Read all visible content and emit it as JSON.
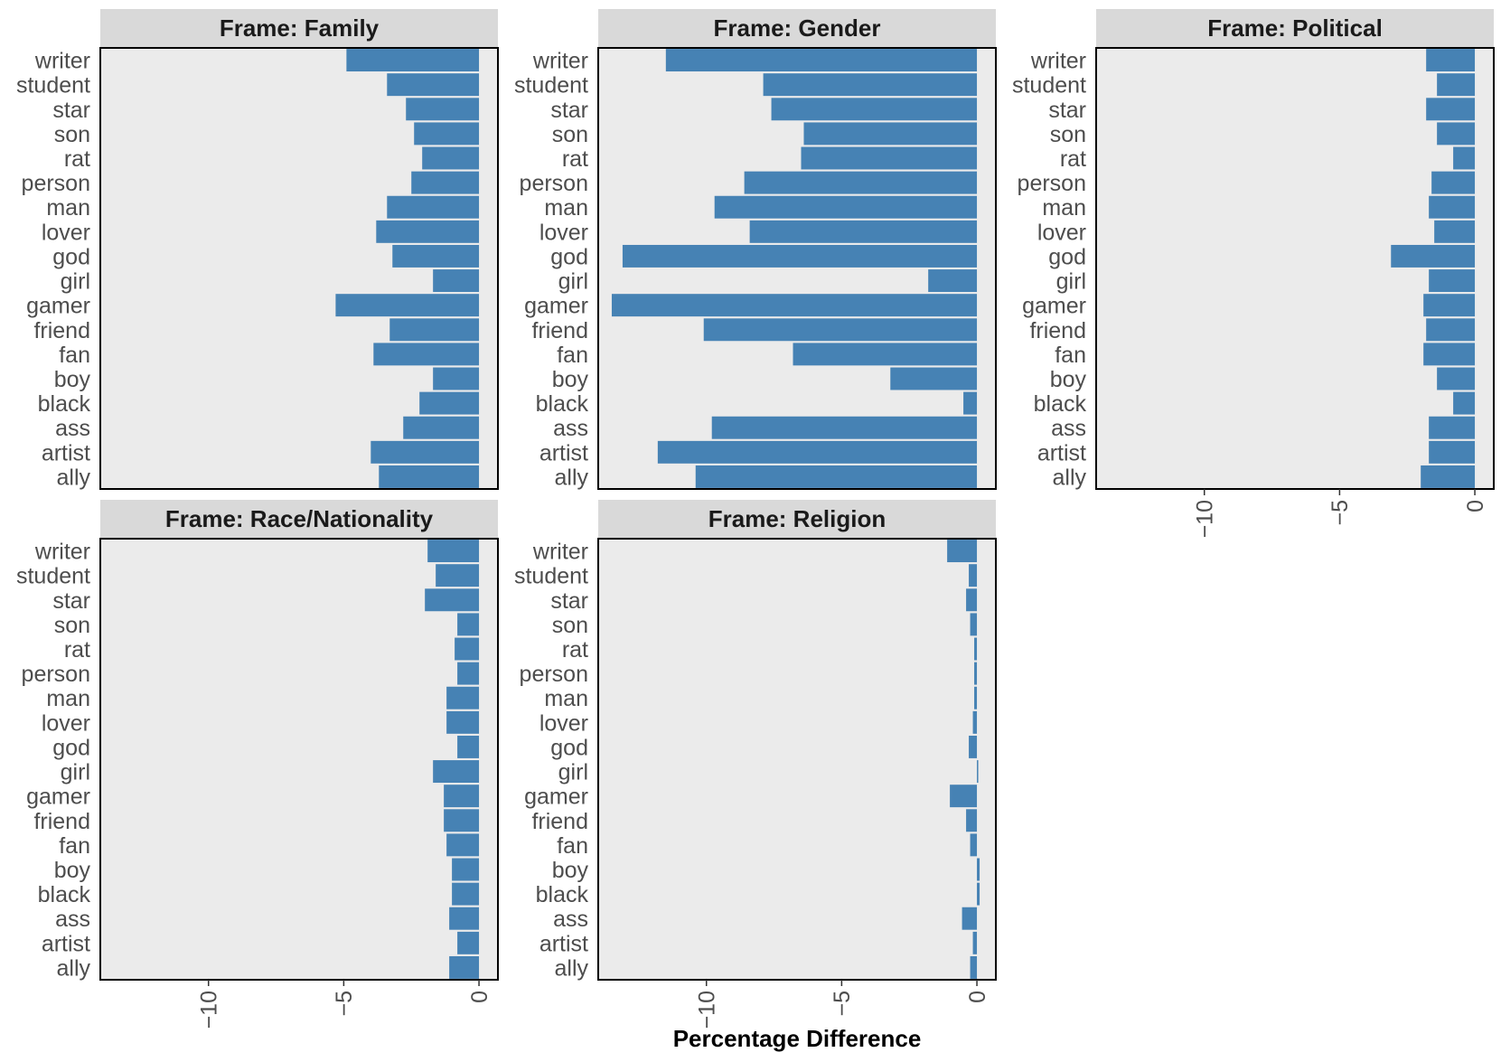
{
  "chart_data": {
    "type": "bar",
    "orientation": "horizontal",
    "facet_prefix": "Frame: ",
    "categories": [
      "writer",
      "student",
      "star",
      "son",
      "rat",
      "person",
      "man",
      "lover",
      "god",
      "girl",
      "gamer",
      "friend",
      "fan",
      "boy",
      "black",
      "ass",
      "artist",
      "ally"
    ],
    "xlabel": "Percentage Difference",
    "ylabel": "",
    "xlim": [
      -14.0,
      0.7
    ],
    "xticks": [
      -10,
      -5,
      0
    ],
    "bar_color": "#4682b4",
    "panel_bg": "#ebebeb",
    "strip_bg": "#d9d9d9",
    "facets": [
      {
        "name": "Family",
        "title": "Frame: Family",
        "values": [
          -4.9,
          -3.4,
          -2.7,
          -2.4,
          -2.1,
          -2.5,
          -3.4,
          -3.8,
          -3.2,
          -1.7,
          -5.3,
          -3.3,
          -3.9,
          -1.7,
          -2.2,
          -2.8,
          -4.0,
          -3.7
        ]
      },
      {
        "name": "Gender",
        "title": "Frame: Gender",
        "values": [
          -11.5,
          -7.9,
          -7.6,
          -6.4,
          -6.5,
          -8.6,
          -9.7,
          -8.4,
          -13.1,
          -1.8,
          -13.5,
          -10.1,
          -6.8,
          -3.2,
          -0.5,
          -9.8,
          -11.8,
          -10.4
        ]
      },
      {
        "name": "Political",
        "title": "Frame: Political",
        "values": [
          -1.8,
          -1.4,
          -1.8,
          -1.4,
          -0.8,
          -1.6,
          -1.7,
          -1.5,
          -3.1,
          -1.7,
          -1.9,
          -1.8,
          -1.9,
          -1.4,
          -0.8,
          -1.7,
          -1.7,
          -2.0
        ]
      },
      {
        "name": "Race/Nationality",
        "title": "Frame: Race/Nationality",
        "values": [
          -1.9,
          -1.6,
          -2.0,
          -0.8,
          -0.9,
          -0.8,
          -1.2,
          -1.2,
          -0.8,
          -1.7,
          -1.3,
          -1.3,
          -1.2,
          -1.0,
          -1.0,
          -1.1,
          -0.8,
          -1.1
        ]
      },
      {
        "name": "Religion",
        "title": "Frame: Religion",
        "values": [
          -1.1,
          -0.3,
          -0.4,
          -0.25,
          -0.1,
          -0.1,
          -0.1,
          -0.15,
          -0.3,
          0.05,
          -1.0,
          -0.4,
          -0.25,
          0.1,
          0.1,
          -0.55,
          -0.15,
          -0.25
        ]
      }
    ]
  }
}
